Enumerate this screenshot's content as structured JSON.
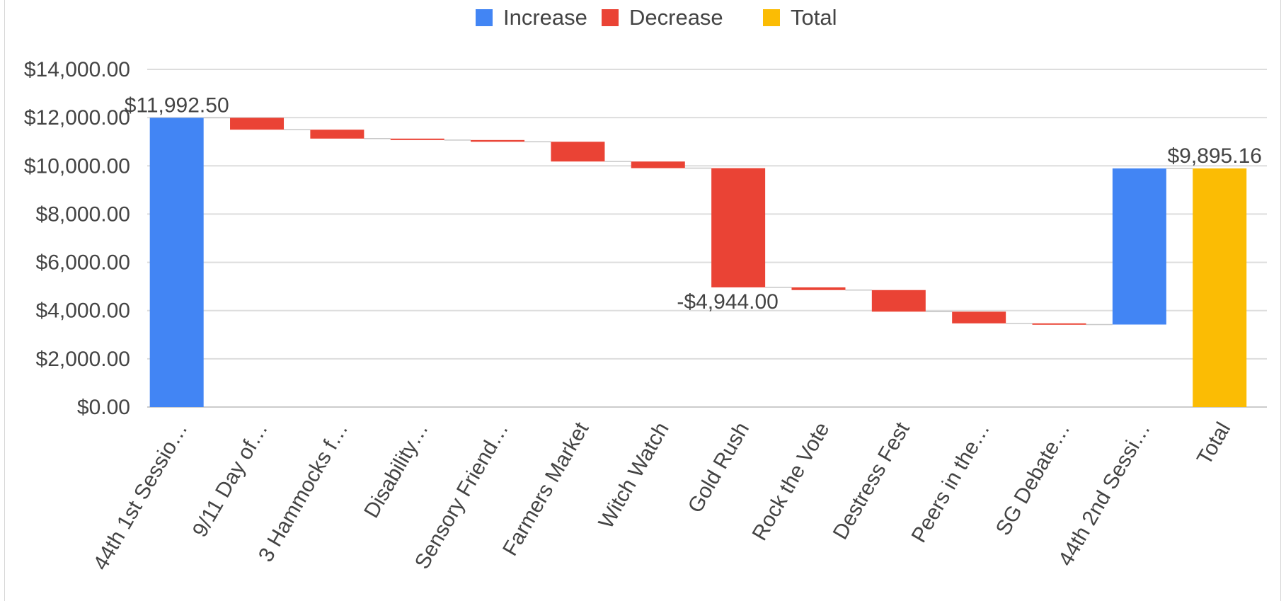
{
  "colors": {
    "increase": "#4285F4",
    "decrease": "#EA4335",
    "total": "#FBBC04",
    "grid": "#dddddd",
    "axis": "#cccccc",
    "connector": "#c8c8c8",
    "text": "#444444"
  },
  "legend": {
    "position": "top-center",
    "items": [
      {
        "label": "Increase",
        "color": "#4285F4"
      },
      {
        "label": "Decrease",
        "color": "#EA4335"
      },
      {
        "label": "Total",
        "color": "#FBBC04"
      }
    ]
  },
  "chart_data": {
    "type": "waterfall",
    "title": "",
    "xlabel": "",
    "ylabel": "",
    "ylim": [
      0,
      14000
    ],
    "yticks": [
      0,
      2000,
      4000,
      6000,
      8000,
      10000,
      12000,
      14000
    ],
    "ytick_labels": [
      "$0.00",
      "$2,000.00",
      "$4,000.00",
      "$6,000.00",
      "$8,000.00",
      "$10,000.00",
      "$12,000.00",
      "$14,000.00"
    ],
    "grid": true,
    "categories": [
      "44th 1st Sessio…",
      "9/11 Day of…",
      "3 Hammocks f…",
      "Disability…",
      "Sensory Friend…",
      "Farmers Market",
      "Witch Watch",
      "Gold Rush",
      "Rock the Vote",
      "Destress Fest",
      "Peers in the…",
      "SG Debate…",
      "44th 2nd Sessi…",
      "Total"
    ],
    "bars": [
      {
        "kind": "increase",
        "start": 0,
        "end": 11992.5
      },
      {
        "kind": "decrease",
        "start": 11992.5,
        "end": 11500
      },
      {
        "kind": "decrease",
        "start": 11500,
        "end": 11130
      },
      {
        "kind": "decrease",
        "start": 11130,
        "end": 11070
      },
      {
        "kind": "decrease",
        "start": 11070,
        "end": 11000
      },
      {
        "kind": "decrease",
        "start": 11000,
        "end": 10180
      },
      {
        "kind": "decrease",
        "start": 10180,
        "end": 9905
      },
      {
        "kind": "decrease",
        "start": 9905,
        "end": 4961
      },
      {
        "kind": "decrease",
        "start": 4961,
        "end": 4850
      },
      {
        "kind": "decrease",
        "start": 4850,
        "end": 3955
      },
      {
        "kind": "decrease",
        "start": 3955,
        "end": 3470
      },
      {
        "kind": "decrease",
        "start": 3470,
        "end": 3420
      },
      {
        "kind": "increase",
        "start": 3420,
        "end": 9895.16
      },
      {
        "kind": "total",
        "start": 0,
        "end": 9895.16
      }
    ],
    "data_labels": [
      {
        "index": 0,
        "text": "$11,992.50"
      },
      {
        "index": 7,
        "text": "-$4,944.00"
      },
      {
        "index": 13,
        "text": "$9,895.16"
      }
    ]
  }
}
